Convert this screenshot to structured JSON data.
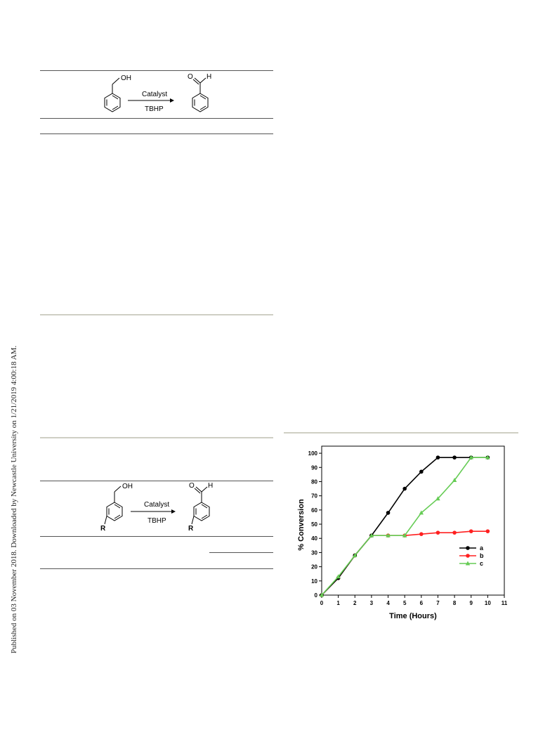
{
  "side_note": "Published on 03 November 2018. Downloaded by Newcastle University on 1/21/2019 4:00:18 AM.",
  "scheme1": {
    "reactant_group": "OH",
    "product_group_o": "O",
    "product_group_h": "H",
    "catalyst": "Catalyst",
    "oxidant": "TBHP"
  },
  "scheme2": {
    "reactant_group": "OH",
    "product_group_o": "O",
    "product_group_h": "H",
    "catalyst": "Catalyst",
    "oxidant": "TBHP",
    "substituent_reactant": "R",
    "substituent_product": "R"
  },
  "colors": {
    "a": "#000000",
    "b": "#ff2020",
    "c": "#66cc55"
  },
  "chart_data": {
    "type": "line",
    "xlabel": "Time (Hours)",
    "ylabel": "% Conversion",
    "xlim": [
      0,
      11
    ],
    "ylim": [
      0,
      105
    ],
    "xticks": [
      0,
      1,
      2,
      3,
      4,
      5,
      6,
      7,
      8,
      9,
      10,
      11
    ],
    "yticks": [
      0,
      10,
      20,
      30,
      40,
      50,
      60,
      70,
      80,
      90,
      100
    ],
    "legend_position": "right",
    "series": [
      {
        "name": "a",
        "marker": "circle",
        "x": [
          0,
          1,
          2,
          3,
          4,
          5,
          6,
          7,
          8,
          9,
          10
        ],
        "y": [
          0,
          12,
          28,
          42,
          58,
          75,
          87,
          97,
          97,
          97,
          97
        ]
      },
      {
        "name": "b",
        "marker": "circle",
        "x": [
          0,
          1,
          2,
          3,
          4,
          5,
          6,
          7,
          8,
          9,
          10
        ],
        "y": [
          0,
          12,
          28,
          42,
          42,
          42,
          43,
          44,
          44,
          45,
          45
        ]
      },
      {
        "name": "c",
        "marker": "triangle",
        "x": [
          0,
          1,
          2,
          3,
          4,
          5,
          6,
          7,
          8,
          9,
          10
        ],
        "y": [
          0,
          13,
          28,
          42,
          42,
          42,
          58,
          68,
          81,
          97,
          97
        ]
      }
    ]
  }
}
